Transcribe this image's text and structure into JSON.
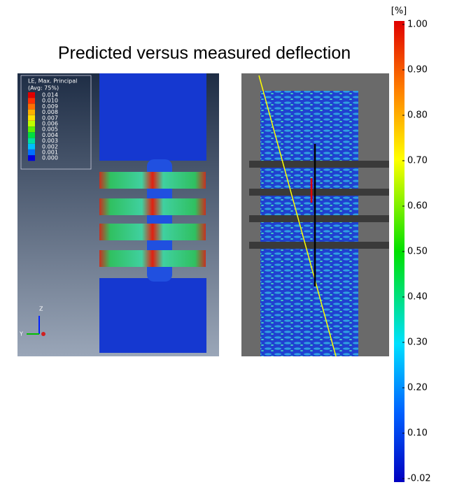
{
  "title": "Predicted versus measured deflection",
  "fea_legend": {
    "title": "LE, Max. Principal",
    "subtitle": "(Avg: 75%)",
    "labels": [
      "0.014",
      "0.010",
      "0.009",
      "0.008",
      "0.007",
      "0.006",
      "0.005",
      "0.004",
      "0.003",
      "0.002",
      "0.001",
      "0.000"
    ]
  },
  "triad": {
    "z": "Z",
    "y": "Y"
  },
  "colorbar": {
    "unit": "[%]",
    "labels": [
      "1.00",
      "0.90",
      "0.80",
      "0.70",
      "0.60",
      "0.50",
      "0.40",
      "0.30",
      "0.20",
      "0.10",
      "-0.02"
    ]
  }
}
